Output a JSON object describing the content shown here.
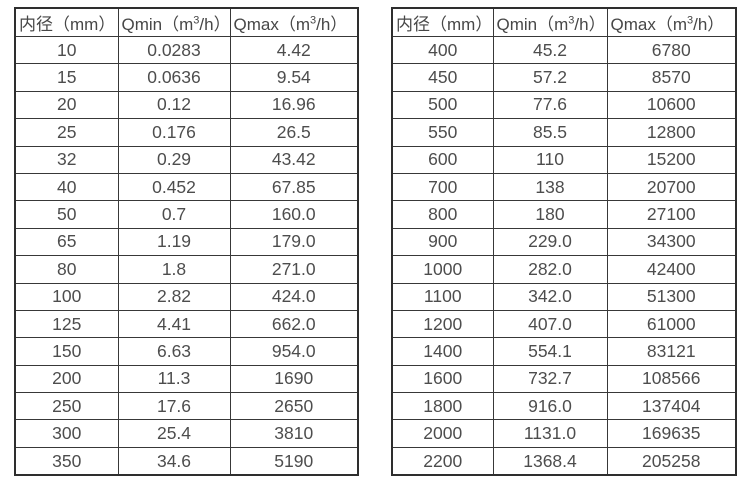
{
  "colors": {
    "background": "#ffffff",
    "border_outer": "#2e2e2e",
    "border_inner": "#383838",
    "text": "#4d4d4d"
  },
  "tables": [
    {
      "name": "flow-spec-table-small-diameters",
      "header": {
        "col1": "内径（mm）",
        "col2_pre": "Qmin（m",
        "col2_sup": "3",
        "col2_post": "/h）",
        "col3_pre": "Qmax（m",
        "col3_sup": "3",
        "col3_post": "/h）"
      },
      "rows": [
        [
          "10",
          "0.0283",
          "4.42"
        ],
        [
          "15",
          "0.0636",
          "9.54"
        ],
        [
          "20",
          "0.12",
          "16.96"
        ],
        [
          "25",
          "0.176",
          "26.5"
        ],
        [
          "32",
          "0.29",
          "43.42"
        ],
        [
          "40",
          "0.452",
          "67.85"
        ],
        [
          "50",
          "0.7",
          "160.0"
        ],
        [
          "65",
          "1.19",
          "179.0"
        ],
        [
          "80",
          "1.8",
          "271.0"
        ],
        [
          "100",
          "2.82",
          "424.0"
        ],
        [
          "125",
          "4.41",
          "662.0"
        ],
        [
          "150",
          "6.63",
          "954.0"
        ],
        [
          "200",
          "11.3",
          "1690"
        ],
        [
          "250",
          "17.6",
          "2650"
        ],
        [
          "300",
          "25.4",
          "3810"
        ],
        [
          "350",
          "34.6",
          "5190"
        ]
      ]
    },
    {
      "name": "flow-spec-table-large-diameters",
      "header": {
        "col1": "内径（mm）",
        "col2_pre": "Qmin（m",
        "col2_sup": "3",
        "col2_post": "/h）",
        "col3_pre": "Qmax（m",
        "col3_sup": "3",
        "col3_post": "/h）"
      },
      "rows": [
        [
          "400",
          "45.2",
          "6780"
        ],
        [
          "450",
          "57.2",
          "8570"
        ],
        [
          "500",
          "77.6",
          "10600"
        ],
        [
          "550",
          "85.5",
          "12800"
        ],
        [
          "600",
          "110",
          "15200"
        ],
        [
          "700",
          "138",
          "20700"
        ],
        [
          "800",
          "180",
          "27100"
        ],
        [
          "900",
          "229.0",
          "34300"
        ],
        [
          "1000",
          "282.0",
          "42400"
        ],
        [
          "1100",
          "342.0",
          "51300"
        ],
        [
          "1200",
          "407.0",
          "61000"
        ],
        [
          "1400",
          "554.1",
          "83121"
        ],
        [
          "1600",
          "732.7",
          "108566"
        ],
        [
          "1800",
          "916.0",
          "137404"
        ],
        [
          "2000",
          "1131.0",
          "169635"
        ],
        [
          "2200",
          "1368.4",
          "205258"
        ]
      ]
    }
  ]
}
